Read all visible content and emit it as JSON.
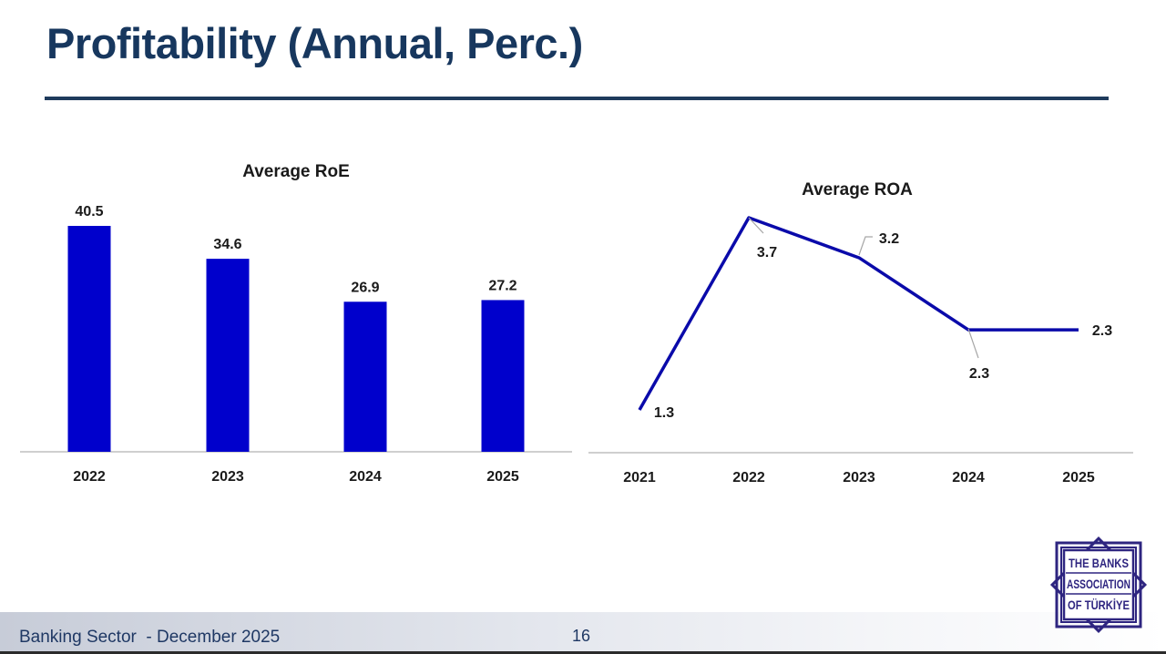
{
  "page": {
    "title": "Profitability (Annual, Perc.)",
    "footer": "Banking Sector  - December 2025",
    "page_number": "16",
    "logo": {
      "line1": "THE BANKS",
      "line2": "ASSOCIATION",
      "line3": "OF TÜRKİYE"
    }
  },
  "colors": {
    "bar": "#0000cc",
    "line": "#0a0aaa",
    "title": "#17375e",
    "axis": "#bfbfbf"
  },
  "chart_data": [
    {
      "type": "bar",
      "title": "Average RoE",
      "categories": [
        "2022",
        "2023",
        "2024",
        "2025"
      ],
      "values": [
        40.5,
        34.6,
        26.9,
        27.2
      ],
      "data_labels": [
        "40.5",
        "34.6",
        "26.9",
        "27.2"
      ],
      "ylim": [
        0,
        40.5
      ],
      "grid": false,
      "legend": "none"
    },
    {
      "type": "line",
      "title": "Average ROA",
      "categories": [
        "2021",
        "2022",
        "2023",
        "2024",
        "2025"
      ],
      "values": [
        1.3,
        3.7,
        3.2,
        2.3,
        2.3
      ],
      "data_labels": [
        "1.3",
        "3.7",
        "3.2",
        "2.3",
        "2.3"
      ],
      "ylim": [
        0,
        3.7
      ],
      "grid": false,
      "legend": "none"
    }
  ]
}
